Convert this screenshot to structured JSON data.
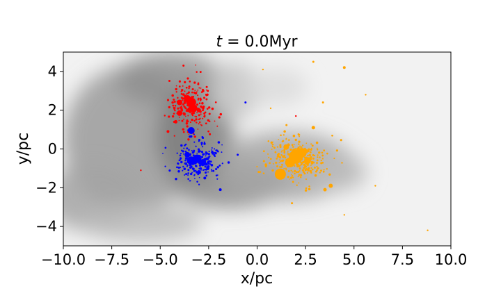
{
  "chart_data": {
    "type": "scatter",
    "title_prefix": "t",
    "title_eq": " = ",
    "title_value": "0.0Myr",
    "xlabel": "x/pc",
    "ylabel": "y/pc",
    "xlim": [
      -10,
      10
    ],
    "ylim": [
      -5,
      5
    ],
    "xticks": [
      {
        "value": -10,
        "label": "−10.0"
      },
      {
        "value": -7.5,
        "label": "−7.5"
      },
      {
        "value": -5,
        "label": "−5.0"
      },
      {
        "value": -2.5,
        "label": "−2.5"
      },
      {
        "value": 0,
        "label": "0.0"
      },
      {
        "value": 2.5,
        "label": "2.5"
      },
      {
        "value": 5,
        "label": "5.0"
      },
      {
        "value": 7.5,
        "label": "7.5"
      },
      {
        "value": 10,
        "label": "10.0"
      }
    ],
    "yticks": [
      {
        "value": -4,
        "label": "−4"
      },
      {
        "value": -2,
        "label": "−2"
      },
      {
        "value": 0,
        "label": "0"
      },
      {
        "value": 2,
        "label": "2"
      },
      {
        "value": 4,
        "label": "4"
      }
    ],
    "grid": false,
    "background": "grayscale gas density",
    "series": [
      {
        "color": "#ff0000",
        "center": [
          -3.4,
          2.3
        ],
        "spread": [
          0.55,
          0.7
        ],
        "n_small": 220,
        "big_points": [
          {
            "x": -3.4,
            "y": 2.4,
            "size": 7
          },
          {
            "x": -3.3,
            "y": 2.1,
            "size": 6
          },
          {
            "x": -3.6,
            "y": 2.6,
            "size": 5
          },
          {
            "x": -4.0,
            "y": 2.4,
            "size": 4
          },
          {
            "x": -4.0,
            "y": 1.85,
            "size": 4
          },
          {
            "x": -3.0,
            "y": 2.0,
            "size": 3
          },
          {
            "x": -4.2,
            "y": 1.4,
            "size": 2.5
          },
          {
            "x": -4.6,
            "y": 0.9,
            "size": 2
          },
          {
            "x": -3.8,
            "y": 4.3,
            "size": 1.5
          },
          {
            "x": -2.6,
            "y": 3.2,
            "size": 1.5
          },
          {
            "x": -6.0,
            "y": -1.1,
            "size": 1.2
          },
          {
            "x": 2.0,
            "y": 1.7,
            "size": 1.2
          }
        ]
      },
      {
        "color": "#0000ff",
        "center": [
          -3.0,
          -0.6
        ],
        "spread": [
          0.6,
          0.45
        ],
        "n_small": 230,
        "big_points": [
          {
            "x": -3.4,
            "y": 0.95,
            "size": 5
          },
          {
            "x": -3.4,
            "y": -0.6,
            "size": 6
          },
          {
            "x": -3.1,
            "y": -0.5,
            "size": 6
          },
          {
            "x": -2.8,
            "y": -0.7,
            "size": 5
          },
          {
            "x": -3.6,
            "y": -0.3,
            "size": 4
          },
          {
            "x": -3.0,
            "y": -1.2,
            "size": 3
          },
          {
            "x": -0.6,
            "y": 2.4,
            "size": 1.5
          },
          {
            "x": -1.9,
            "y": -2.1,
            "size": 2
          },
          {
            "x": -2.7,
            "y": -1.5,
            "size": 2
          },
          {
            "x": -1.0,
            "y": -0.3,
            "size": 1.5
          }
        ]
      },
      {
        "color": "#ffa500",
        "center": [
          2.0,
          -0.5
        ],
        "spread": [
          0.75,
          0.6
        ],
        "n_small": 300,
        "big_points": [
          {
            "x": 2.0,
            "y": -0.4,
            "size": 10
          },
          {
            "x": 1.7,
            "y": -0.7,
            "size": 7
          },
          {
            "x": 2.3,
            "y": -0.2,
            "size": 7
          },
          {
            "x": 1.2,
            "y": -1.3,
            "size": 8
          },
          {
            "x": 2.6,
            "y": -0.6,
            "size": 5
          },
          {
            "x": 1.5,
            "y": 0.1,
            "size": 4
          },
          {
            "x": 2.9,
            "y": 1.1,
            "size": 2.5
          },
          {
            "x": 3.8,
            "y": -1.9,
            "size": 3
          },
          {
            "x": 3.5,
            "y": -2.1,
            "size": 2.5
          },
          {
            "x": 4.5,
            "y": 4.2,
            "size": 2
          },
          {
            "x": 2.9,
            "y": 4.5,
            "size": 1.5
          },
          {
            "x": 5.6,
            "y": 2.8,
            "size": 1.2
          },
          {
            "x": 6.1,
            "y": -1.9,
            "size": 1.2
          },
          {
            "x": 8.8,
            "y": -4.2,
            "size": 1.2
          },
          {
            "x": 0.3,
            "y": 4.1,
            "size": 1.2
          },
          {
            "x": 3.4,
            "y": 2.4,
            "size": 1.5
          },
          {
            "x": 0.7,
            "y": 2.1,
            "size": 1.2
          },
          {
            "x": 4.5,
            "y": -3.4,
            "size": 1.2
          },
          {
            "x": 1.8,
            "y": -2.8,
            "size": 1.5
          }
        ]
      }
    ]
  }
}
